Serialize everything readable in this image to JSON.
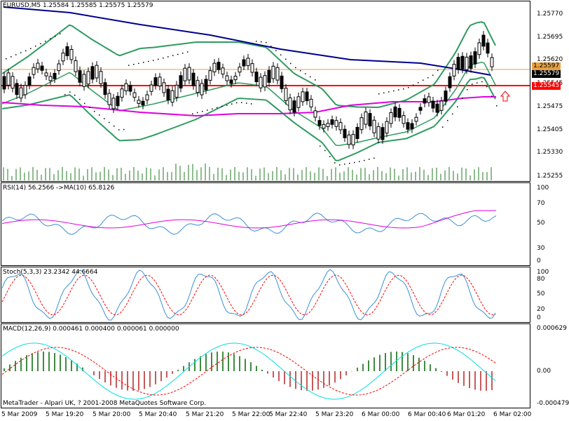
{
  "main": {
    "header": "EURUSD,M5  1.25584 1.25585 1.25575 1.25579",
    "price_axis": [
      "1.25770",
      "1.25695",
      "1.25620",
      "1.25545",
      "1.25475",
      "1.25405",
      "1.25330",
      "1.25255"
    ],
    "tag_current": "1.25579",
    "tag_line": "1.25545",
    "tag_hidden": "1.25597"
  },
  "rsi": {
    "header": "RSI(14) 56.2566  ->MA(10) 65.8126",
    "axis": [
      "100",
      "70",
      "50",
      "30",
      "0"
    ]
  },
  "stoch": {
    "header": "Stoch(5,3,3) 23.2342 44.6664",
    "axis": [
      "100",
      "80",
      "50",
      "20",
      "0"
    ]
  },
  "macd": {
    "header": "MACD(12,26,9) 0.000461 0.000400 0.000061 0.000000",
    "axis": [
      "0.000629",
      "0.00",
      "-0.000479"
    ]
  },
  "copyright": "MetaTrader - Alpari UK, ? 2001-2008 MetaQuotes Software Corp.",
  "time_axis": [
    "5 Mar 2009",
    "5 Mar 19:20",
    "5 Mar 20:00",
    "5 Mar 20:40",
    "5 Mar 21:20",
    "5 Mar 22:00",
    "5 Mar 22:40",
    "5 Mar 23:20",
    "6 Mar 00:00",
    "6 Mar 00:40",
    "6 Mar 01:20",
    "6 Mar 02:00"
  ],
  "colors": {
    "bollinger": "#2e9b5f",
    "ma_slow": "#00008b",
    "ma_pink": "#e000e0",
    "hline_red": "#ff0000",
    "hline_orange": "#e8a040",
    "rsi": "#3a8fd6",
    "stoch_sig": "#ff0000",
    "macd_main": "#00e0e0",
    "macd_up": "#006400",
    "macd_down": "#b22222"
  }
}
